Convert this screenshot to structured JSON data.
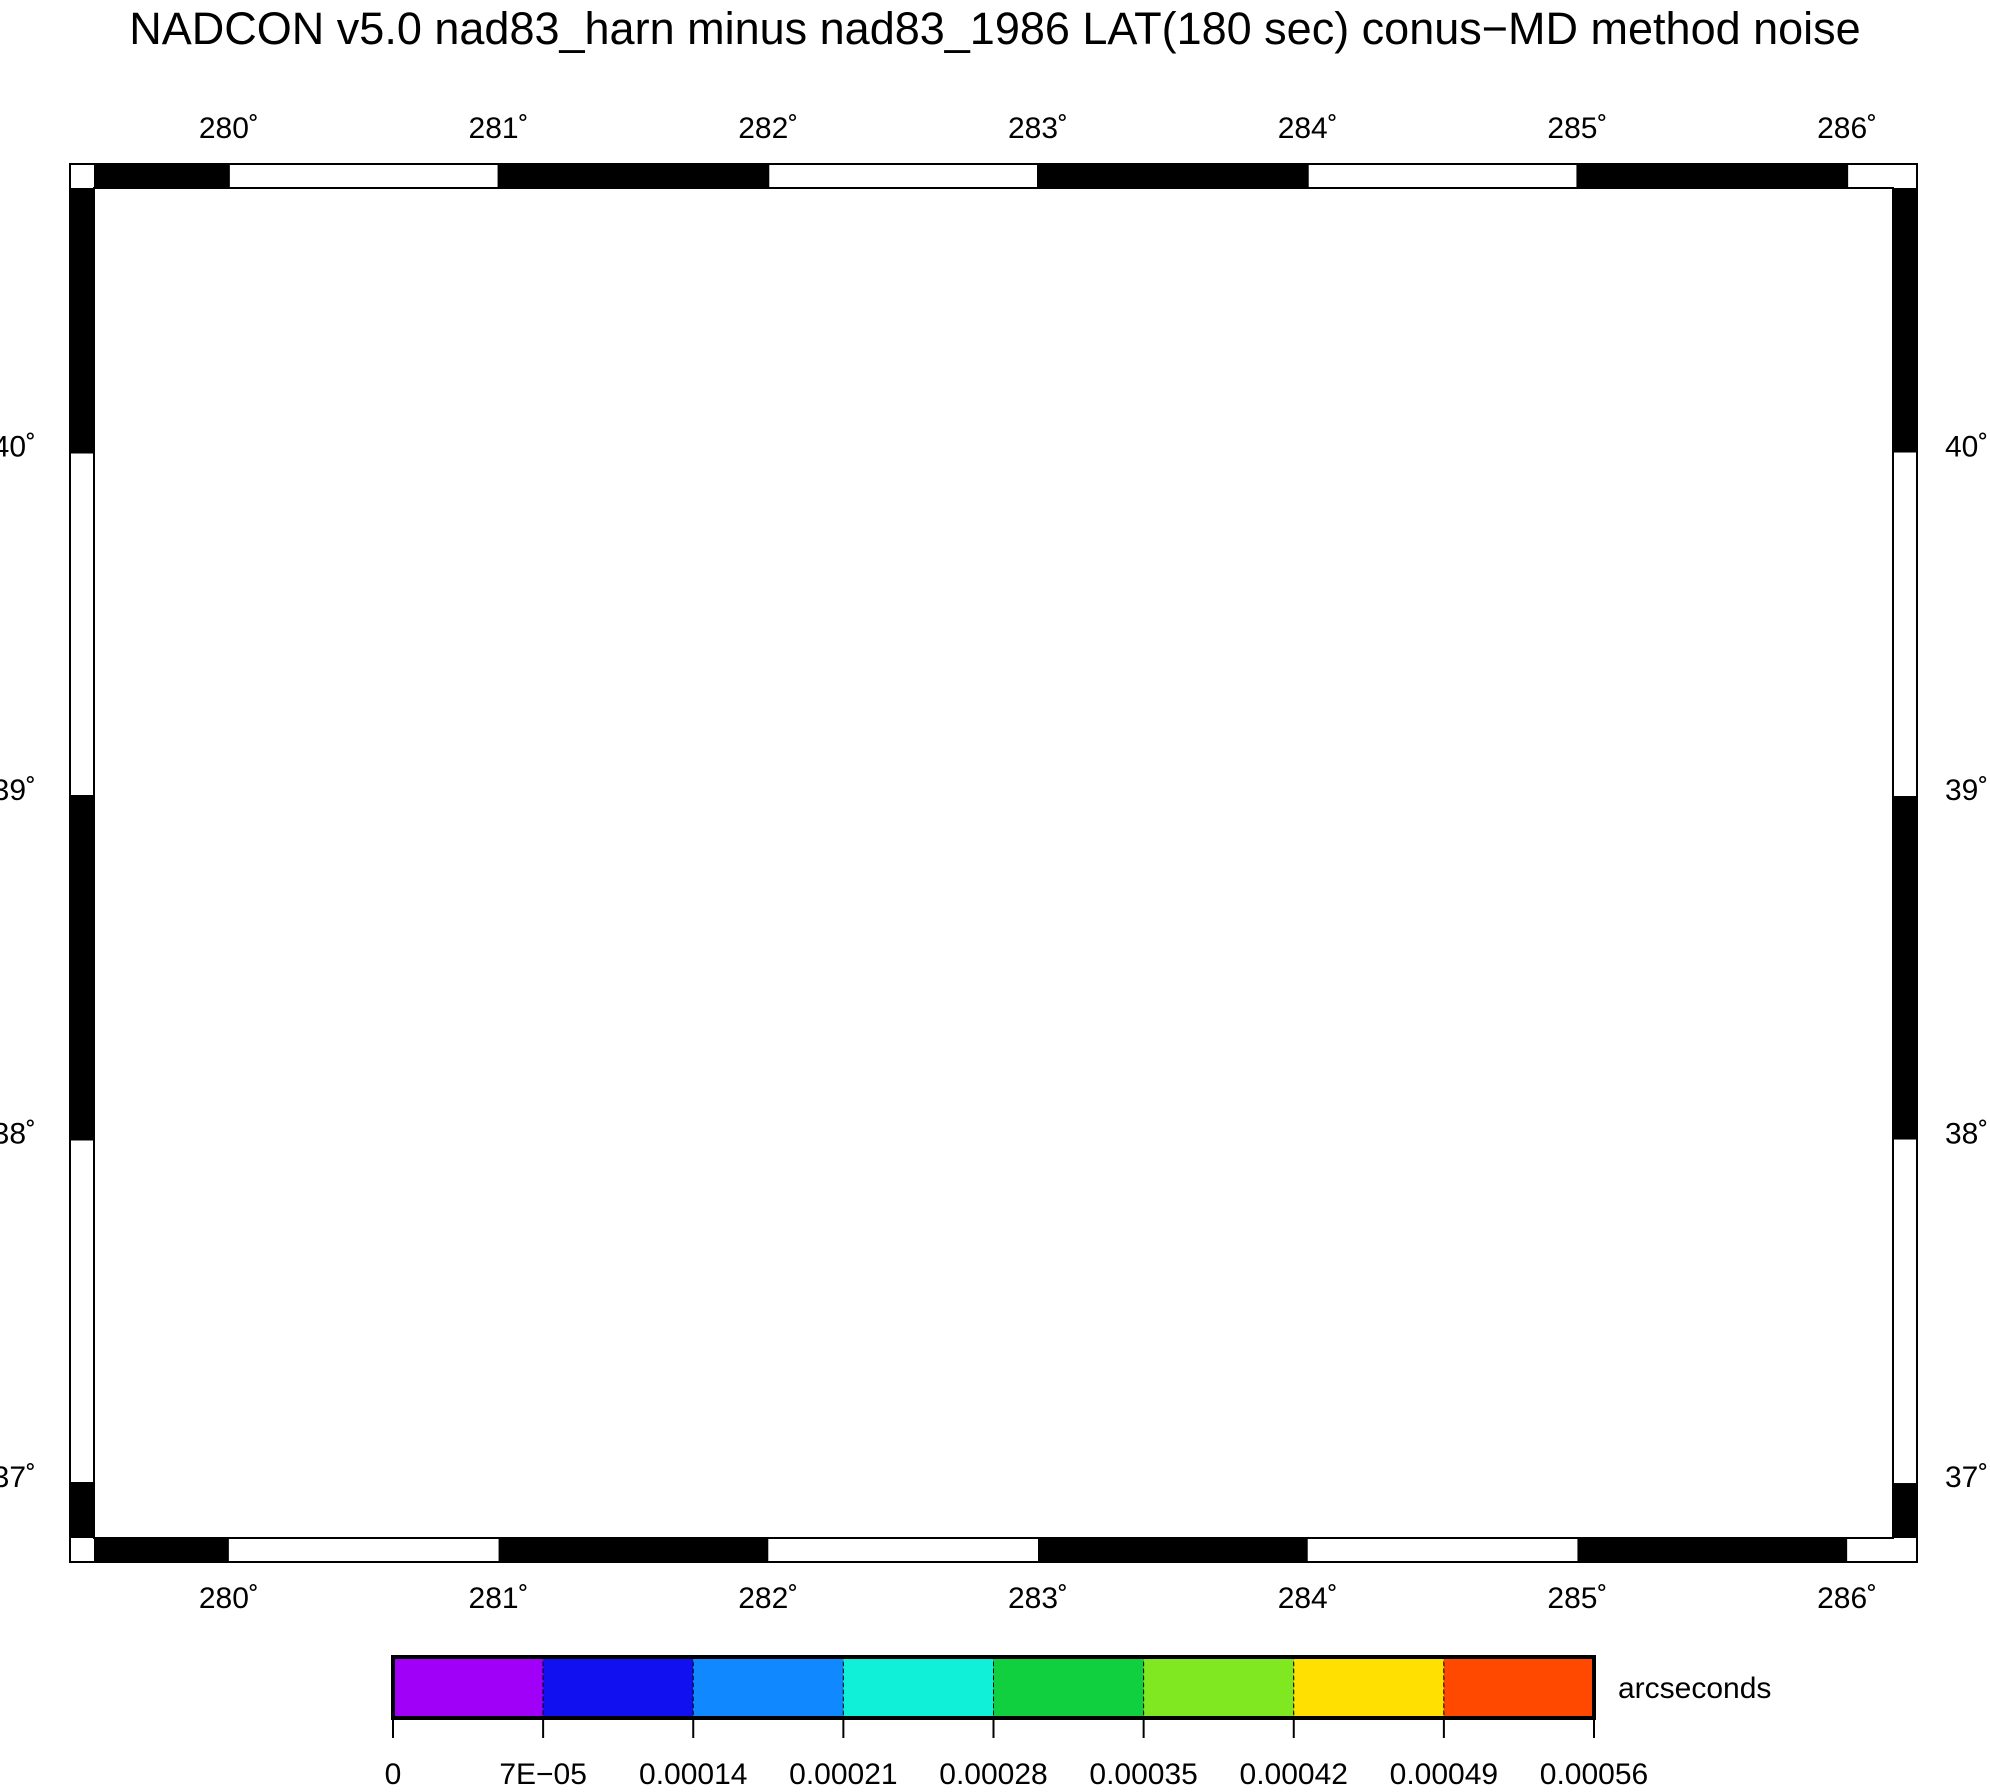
{
  "title": "NADCON v5.0 nad83_harn minus nad83_1986 LAT(180 sec) conus−MD method noise",
  "map": {
    "lon_range": [
      279.5,
      286.17
    ],
    "lat_range": [
      36.84,
      40.77
    ],
    "lon_ticks": [
      {
        "value": 280,
        "label": "280˚"
      },
      {
        "value": 281,
        "label": "281˚"
      },
      {
        "value": 282,
        "label": "282˚"
      },
      {
        "value": 283,
        "label": "283˚"
      },
      {
        "value": 284,
        "label": "284˚"
      },
      {
        "value": 285,
        "label": "285˚"
      },
      {
        "value": 286,
        "label": "286˚"
      }
    ],
    "lat_ticks": [
      {
        "value": 37,
        "label": "37˚"
      },
      {
        "value": 38,
        "label": "38˚"
      },
      {
        "value": 39,
        "label": "39˚"
      },
      {
        "value": 40,
        "label": "40˚"
      }
    ]
  },
  "colorbar": {
    "unit": "arcseconds",
    "ticks": [
      0,
      {
        "value": 7e-05,
        "label": "7E−05"
      },
      0.00014,
      0.00021,
      0.00028,
      0.00035,
      0.00042,
      0.00049,
      0.00056
    ],
    "colors": [
      "#a000f8",
      "#1010f0",
      "#1088ff",
      "#10f0d8",
      "#10d040",
      "#80e820",
      "#ffe000",
      "#ff4800"
    ]
  }
}
